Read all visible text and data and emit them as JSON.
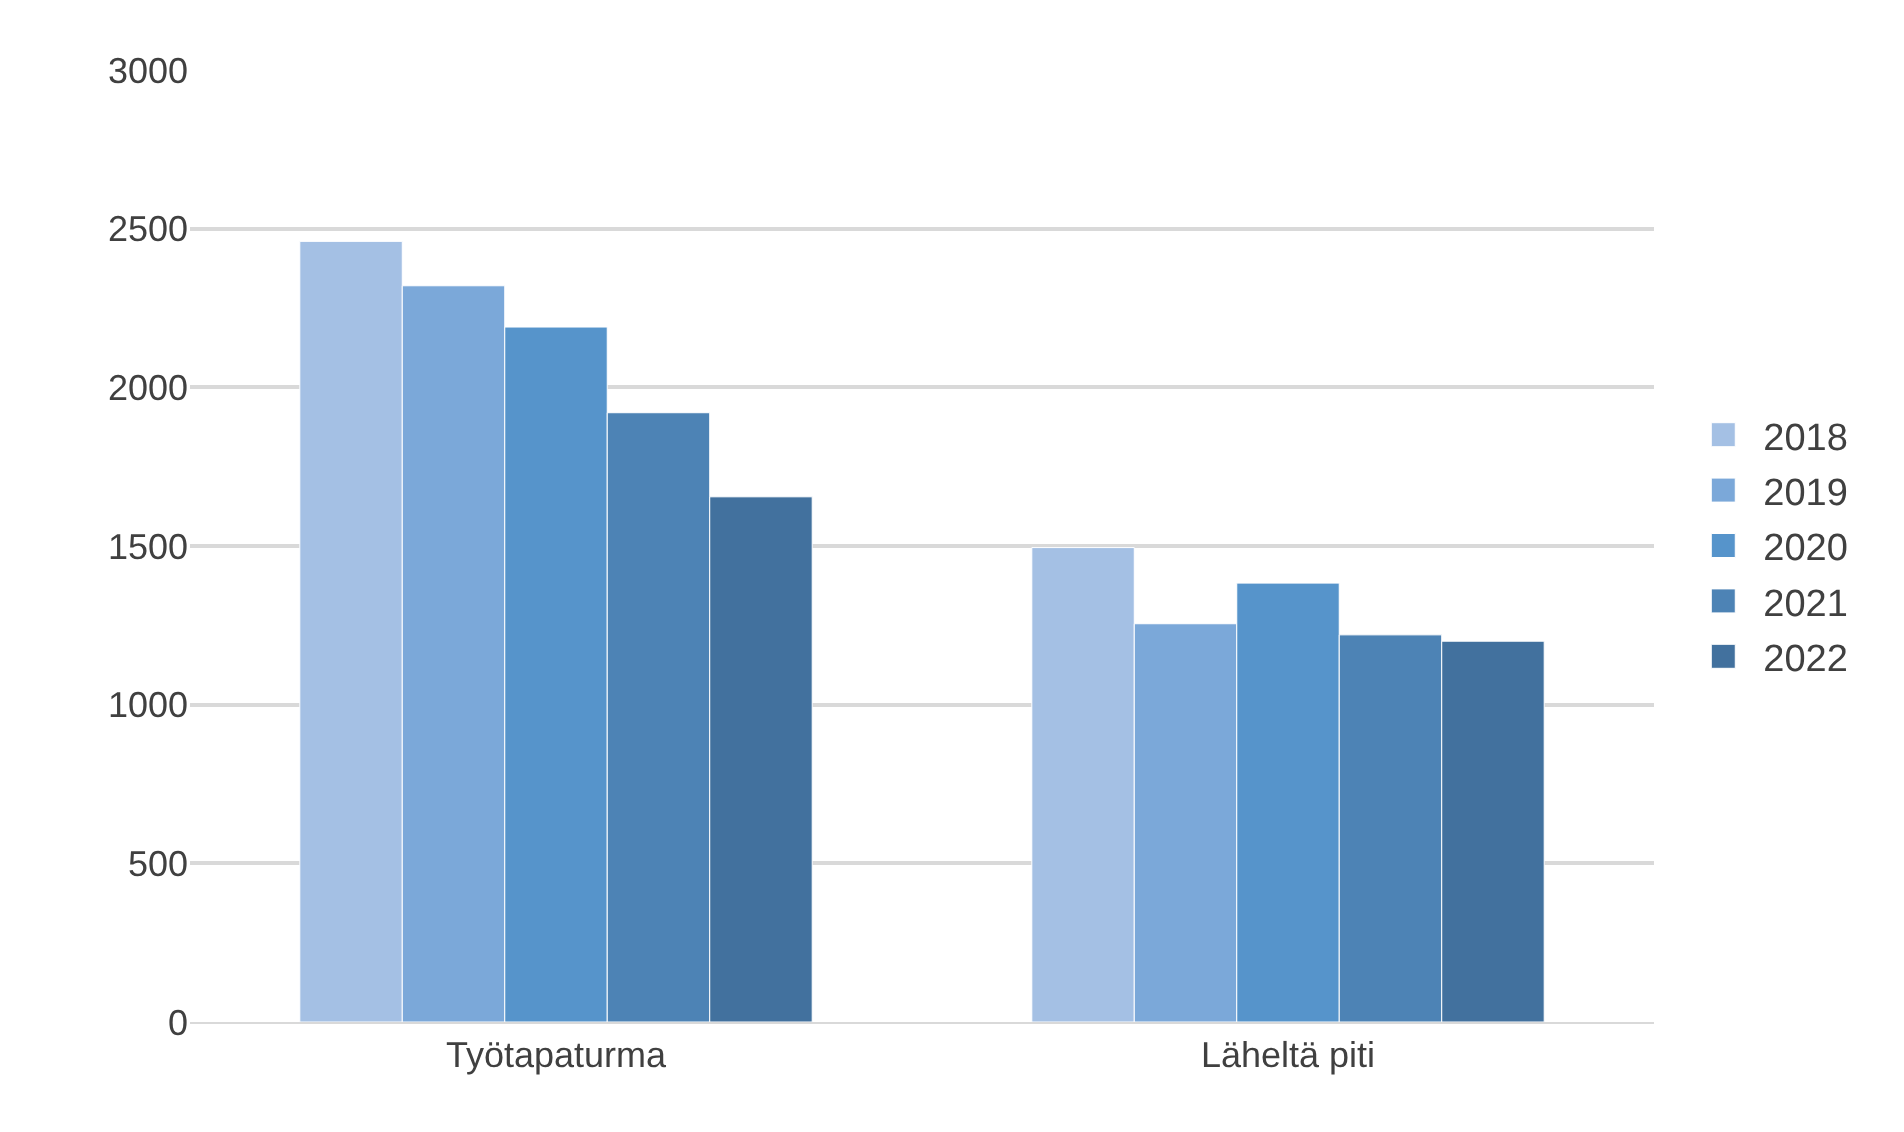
{
  "chart_data": {
    "type": "bar",
    "categories": [
      "Työtapaturma",
      "Läheltä piti"
    ],
    "series": [
      {
        "name": "2018",
        "color": "#a4c0e4",
        "values": [
          2460,
          1495
        ]
      },
      {
        "name": "2019",
        "color": "#7ba8d9",
        "values": [
          2320,
          1255
        ]
      },
      {
        "name": "2020",
        "color": "#5694cb",
        "values": [
          2190,
          1383
        ]
      },
      {
        "name": "2021",
        "color": "#4d83b5",
        "values": [
          1920,
          1220
        ]
      },
      {
        "name": "2022",
        "color": "#42719e",
        "values": [
          1655,
          1200
        ]
      }
    ],
    "ylim": [
      0,
      3000
    ],
    "yticks": [
      0,
      500,
      1000,
      1500,
      2000,
      2500,
      3000
    ],
    "grid": "y",
    "legend": "right"
  }
}
